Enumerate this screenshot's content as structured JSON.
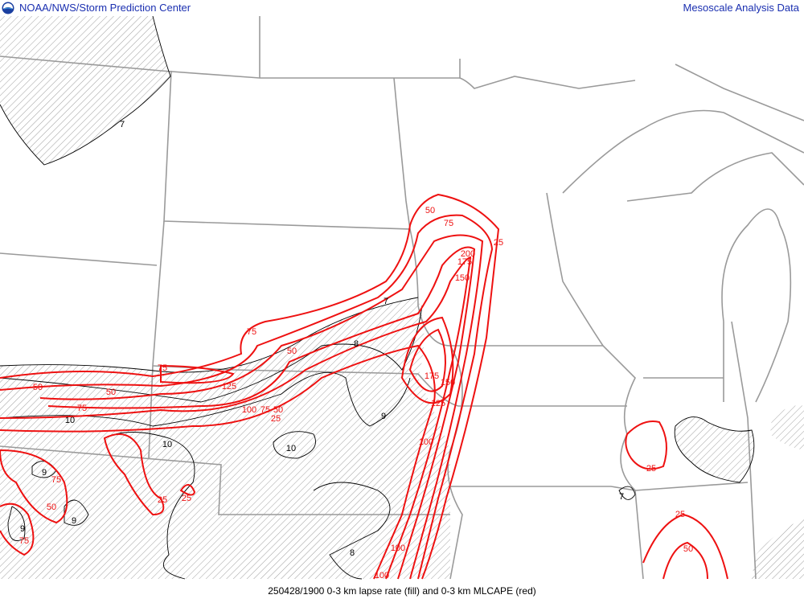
{
  "header": {
    "left_title": "NOAA/NWS/Storm Prediction Center",
    "right_title": "Mesoscale Analysis Data",
    "logo_icon": "noaa-logo-icon"
  },
  "footer": {
    "caption": "250428/1900 0-3 km lapse rate (fill) and 0-3 km MLCAPE (red)"
  },
  "colors": {
    "cape_contour": "#ee1111",
    "lapse_contour": "#000000",
    "boundaries": "#9a9a9a",
    "hatch": "#888888",
    "title": "#1a2fb0"
  },
  "contour_labels": {
    "lapse": [
      "7",
      "7",
      "8",
      "9",
      "10",
      "10",
      "10",
      "9",
      "9",
      "9",
      "8",
      "7"
    ],
    "cape": [
      "50",
      "75",
      "25",
      "200",
      "175",
      "150",
      "75",
      "50",
      "75",
      "50",
      "50",
      "125",
      "100",
      "75",
      "50",
      "25",
      "175",
      "150",
      "125",
      "100",
      "75",
      "75",
      "50",
      "75",
      "25",
      "25",
      "100",
      "100",
      "25",
      "25",
      "50"
    ]
  }
}
